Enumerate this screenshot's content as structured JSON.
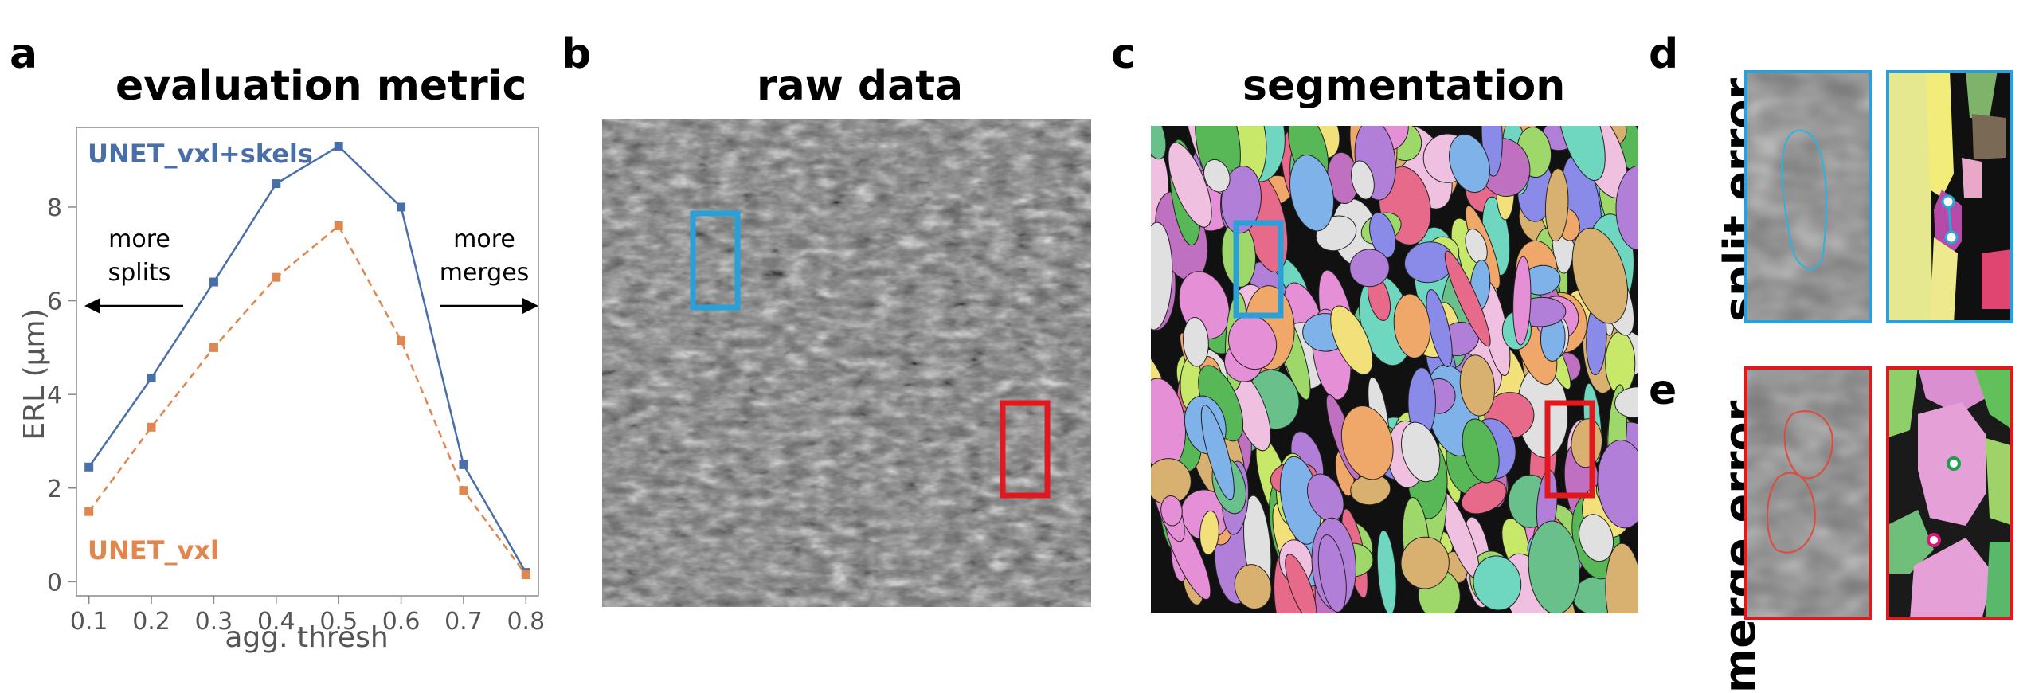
{
  "figure": {
    "panels": {
      "a": {
        "letter": "a",
        "title": "evaluation metric"
      },
      "b": {
        "letter": "b",
        "title": "raw data"
      },
      "c": {
        "letter": "c",
        "title": "segmentation"
      },
      "d": {
        "letter": "d",
        "label": "split error"
      },
      "e": {
        "letter": "e",
        "label": "merge error"
      }
    },
    "annotations": {
      "left_arrow_text": [
        "more",
        "splits"
      ],
      "right_arrow_text": [
        "more",
        "merges"
      ]
    },
    "colors": {
      "series_blue": "#4a6fa8",
      "series_orange": "#e0864f",
      "box_blue": "#2b9fd8",
      "box_red": "#e0191f"
    }
  },
  "chart_data": {
    "type": "line",
    "xlabel": "agg. thresh",
    "ylabel": "ERL (µm)",
    "x": [
      0.1,
      0.2,
      0.3,
      0.4,
      0.5,
      0.6,
      0.7,
      0.8
    ],
    "x_ticks": [
      "0.1",
      "0.2",
      "0.3",
      "0.4",
      "0.5",
      "0.6",
      "0.7",
      "0.8"
    ],
    "y_ticks": [
      "0",
      "2",
      "4",
      "6",
      "8"
    ],
    "xlim": [
      0.08,
      0.82
    ],
    "ylim": [
      -0.3,
      9.7
    ],
    "grid": false,
    "series": [
      {
        "name": "UNET_vxl+skels",
        "color": "#4a6fa8",
        "style": "solid",
        "values": [
          2.45,
          4.35,
          6.4,
          8.5,
          9.3,
          8.0,
          2.5,
          0.2
        ]
      },
      {
        "name": "UNET_vxl",
        "color": "#e0864f",
        "style": "dashed",
        "values": [
          1.5,
          3.3,
          5.0,
          6.5,
          7.6,
          5.15,
          1.95,
          0.15
        ]
      }
    ]
  }
}
